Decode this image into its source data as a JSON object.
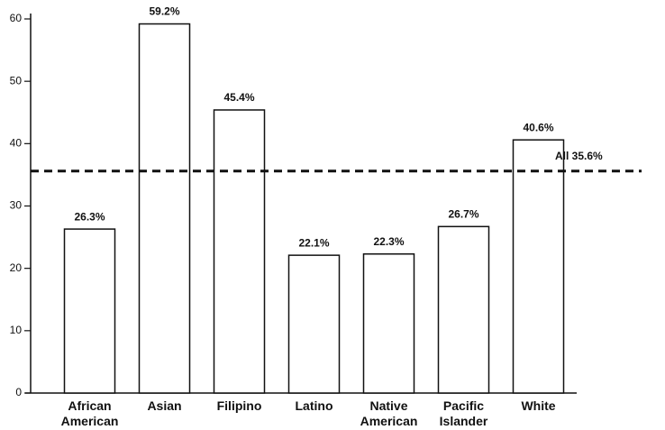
{
  "chart_data": {
    "type": "bar",
    "categories": [
      "African American",
      "Asian",
      "Filipino",
      "Latino",
      "Native American",
      "Pacific Islander",
      "White"
    ],
    "values": [
      26.3,
      59.2,
      45.4,
      22.1,
      22.3,
      26.7,
      40.6
    ],
    "value_labels": [
      "26.3%",
      "59.2%",
      "45.4%",
      "22.1%",
      "22.3%",
      "26.7%",
      "40.6%"
    ],
    "color": "#ffffff",
    "ylim": [
      0,
      60
    ],
    "yticks": [
      0,
      10,
      20,
      30,
      40,
      50,
      60
    ],
    "grid": false,
    "reference_line": {
      "value": 35.6,
      "label": "All 35.6%"
    }
  }
}
